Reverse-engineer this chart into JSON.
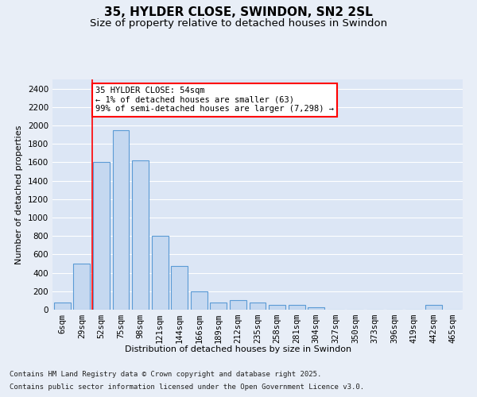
{
  "title": "35, HYLDER CLOSE, SWINDON, SN2 2SL",
  "subtitle": "Size of property relative to detached houses in Swindon",
  "xlabel": "Distribution of detached houses by size in Swindon",
  "ylabel": "Number of detached properties",
  "footer1": "Contains HM Land Registry data © Crown copyright and database right 2025.",
  "footer2": "Contains public sector information licensed under the Open Government Licence v3.0.",
  "categories": [
    "6sqm",
    "29sqm",
    "52sqm",
    "75sqm",
    "98sqm",
    "121sqm",
    "144sqm",
    "166sqm",
    "189sqm",
    "212sqm",
    "235sqm",
    "258sqm",
    "281sqm",
    "304sqm",
    "327sqm",
    "350sqm",
    "373sqm",
    "396sqm",
    "419sqm",
    "442sqm",
    "465sqm"
  ],
  "values": [
    75,
    500,
    1600,
    1950,
    1625,
    800,
    475,
    200,
    75,
    100,
    75,
    50,
    50,
    25,
    0,
    0,
    0,
    0,
    0,
    50,
    0
  ],
  "bar_color": "#c5d8f0",
  "bar_edge_color": "#5b9bd5",
  "vline_x": 1.55,
  "vline_color": "red",
  "annotation_text": "35 HYLDER CLOSE: 54sqm\n← 1% of detached houses are smaller (63)\n99% of semi-detached houses are larger (7,298) →",
  "annotation_box_color": "white",
  "annotation_box_edge_color": "red",
  "ylim": [
    0,
    2500
  ],
  "yticks": [
    0,
    200,
    400,
    600,
    800,
    1000,
    1200,
    1400,
    1600,
    1800,
    2000,
    2200,
    2400
  ],
  "bg_color": "#e8eef7",
  "plot_bg_color": "#dce6f5",
  "grid_color": "white",
  "title_fontsize": 11,
  "subtitle_fontsize": 9.5,
  "axis_label_fontsize": 8,
  "tick_fontsize": 7.5,
  "annotation_fontsize": 7.5,
  "footer_fontsize": 6.5
}
